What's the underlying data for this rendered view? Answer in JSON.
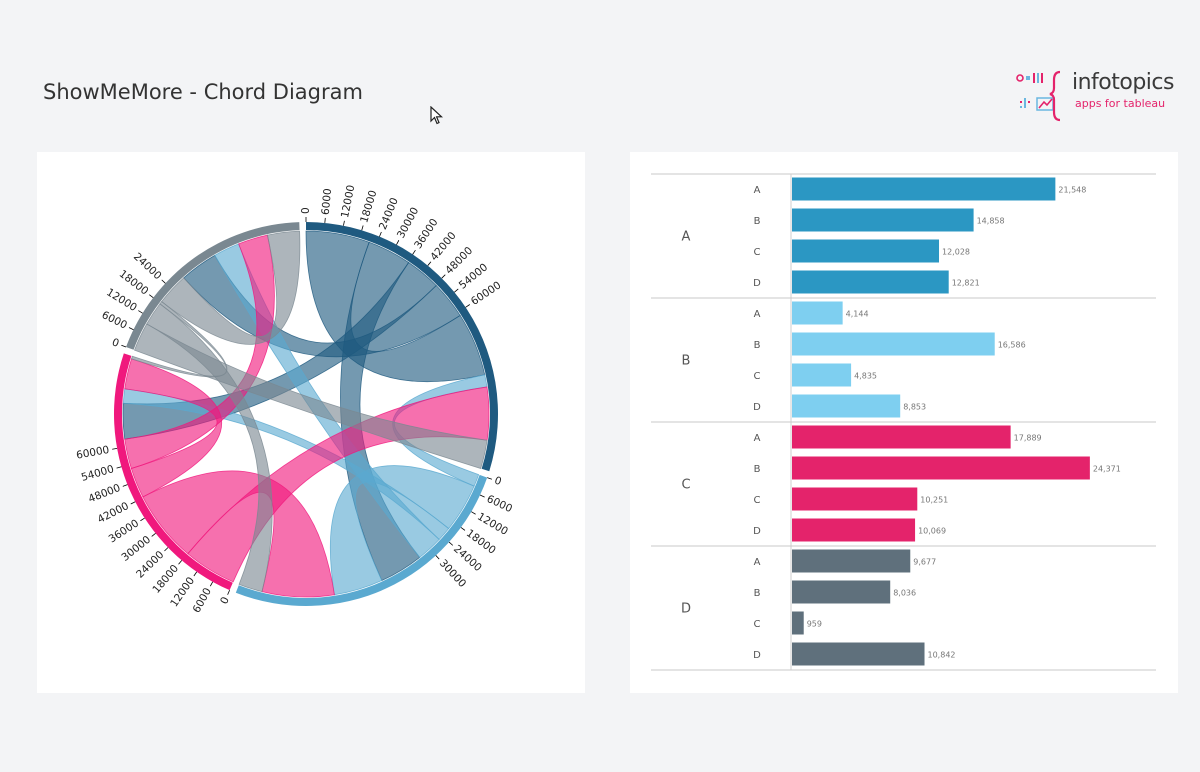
{
  "header": {
    "title": "ShowMeMore - Chord Diagram"
  },
  "logo": {
    "name": "infotopics",
    "tagline": "apps for tableau"
  },
  "colors": {
    "A": "#1f5a80",
    "B": "#5aa9d0",
    "C": "#f0187d",
    "D": "#7a8891",
    "barA": "#2b97c3",
    "barB": "#7ecff0",
    "barC": "#e4236b",
    "barD": "#5f707c"
  },
  "chart_data": [
    {
      "type": "chord",
      "ticks": {
        "A": [
          "0",
          "6000",
          "12000",
          "18000",
          "24000",
          "30000",
          "36000",
          "42000",
          "48000",
          "54000",
          "60000"
        ],
        "B": [
          "0",
          "6000",
          "12000",
          "18000",
          "24000",
          "30000"
        ],
        "C": [
          "0",
          "6000",
          "12000",
          "18000",
          "24000",
          "30000",
          "36000",
          "42000",
          "48000",
          "54000",
          "60000"
        ],
        "D": [
          "0",
          "6000",
          "12000",
          "18000",
          "24000"
        ]
      },
      "groups": [
        "A",
        "B",
        "C",
        "D"
      ],
      "matrix": [
        [
          21548,
          14858,
          12028,
          12821
        ],
        [
          4144,
          16586,
          4835,
          8853
        ],
        [
          17889,
          24371,
          10251,
          10069
        ],
        [
          9677,
          8036,
          959,
          10842
        ]
      ]
    },
    {
      "type": "bar",
      "orientation": "horizontal",
      "groups": [
        {
          "label": "A",
          "categories": [
            "A",
            "B",
            "C",
            "D"
          ],
          "values": [
            21548,
            14858,
            12028,
            12821
          ],
          "labels": [
            "21,548",
            "14,858",
            "12,028",
            "12,821"
          ]
        },
        {
          "label": "B",
          "categories": [
            "A",
            "B",
            "C",
            "D"
          ],
          "values": [
            4144,
            16586,
            4835,
            8853
          ],
          "labels": [
            "4,144",
            "16,586",
            "4,835",
            "8,853"
          ]
        },
        {
          "label": "C",
          "categories": [
            "A",
            "B",
            "C",
            "D"
          ],
          "values": [
            17889,
            24371,
            10251,
            10069
          ],
          "labels": [
            "17,889",
            "24,371",
            "10,251",
            "10,069"
          ]
        },
        {
          "label": "D",
          "categories": [
            "A",
            "B",
            "C",
            "D"
          ],
          "values": [
            9677,
            8036,
            959,
            10842
          ],
          "labels": [
            "9,677",
            "8,036",
            "959",
            "10,842"
          ]
        }
      ],
      "xlim": [
        0,
        27000
      ]
    }
  ]
}
